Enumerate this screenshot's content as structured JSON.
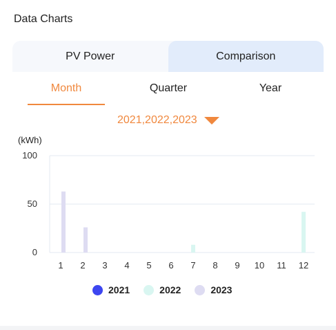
{
  "section": {
    "title": "Data Charts"
  },
  "tabs": [
    {
      "label": "PV Power",
      "active": false
    },
    {
      "label": "Comparison",
      "active": true
    }
  ],
  "period_tabs": [
    {
      "label": "Month",
      "active": true
    },
    {
      "label": "Quarter",
      "active": false
    },
    {
      "label": "Year",
      "active": false
    }
  ],
  "year_select": {
    "value": "2021,2022,2023",
    "icon": "triangle-down-icon"
  },
  "colors": {
    "accent": "#f0883e",
    "tab_active_bg": "#e2ecfb",
    "grid": "#e3e8f0"
  },
  "chart_data": {
    "type": "bar",
    "ylabel": "(kWh)",
    "ylim": [
      0,
      100
    ],
    "yticks": [
      0,
      50,
      100
    ],
    "grid": true,
    "legend_position": "bottom-center",
    "categories": [
      "1",
      "2",
      "3",
      "4",
      "5",
      "6",
      "7",
      "8",
      "9",
      "10",
      "11",
      "12"
    ],
    "series": [
      {
        "name": "2021",
        "color": "#3d46f0",
        "values": [
          0,
          0,
          0,
          0,
          0,
          0,
          0,
          0,
          0,
          0,
          0,
          0
        ]
      },
      {
        "name": "2022",
        "color": "#d9f6f1",
        "values": [
          0,
          0,
          0,
          0,
          0,
          0,
          8,
          0,
          0,
          0,
          0,
          42
        ]
      },
      {
        "name": "2023",
        "color": "#dedcf2",
        "values": [
          63,
          26,
          0,
          0,
          0,
          0,
          0,
          0,
          0,
          0,
          0,
          0
        ]
      }
    ]
  }
}
